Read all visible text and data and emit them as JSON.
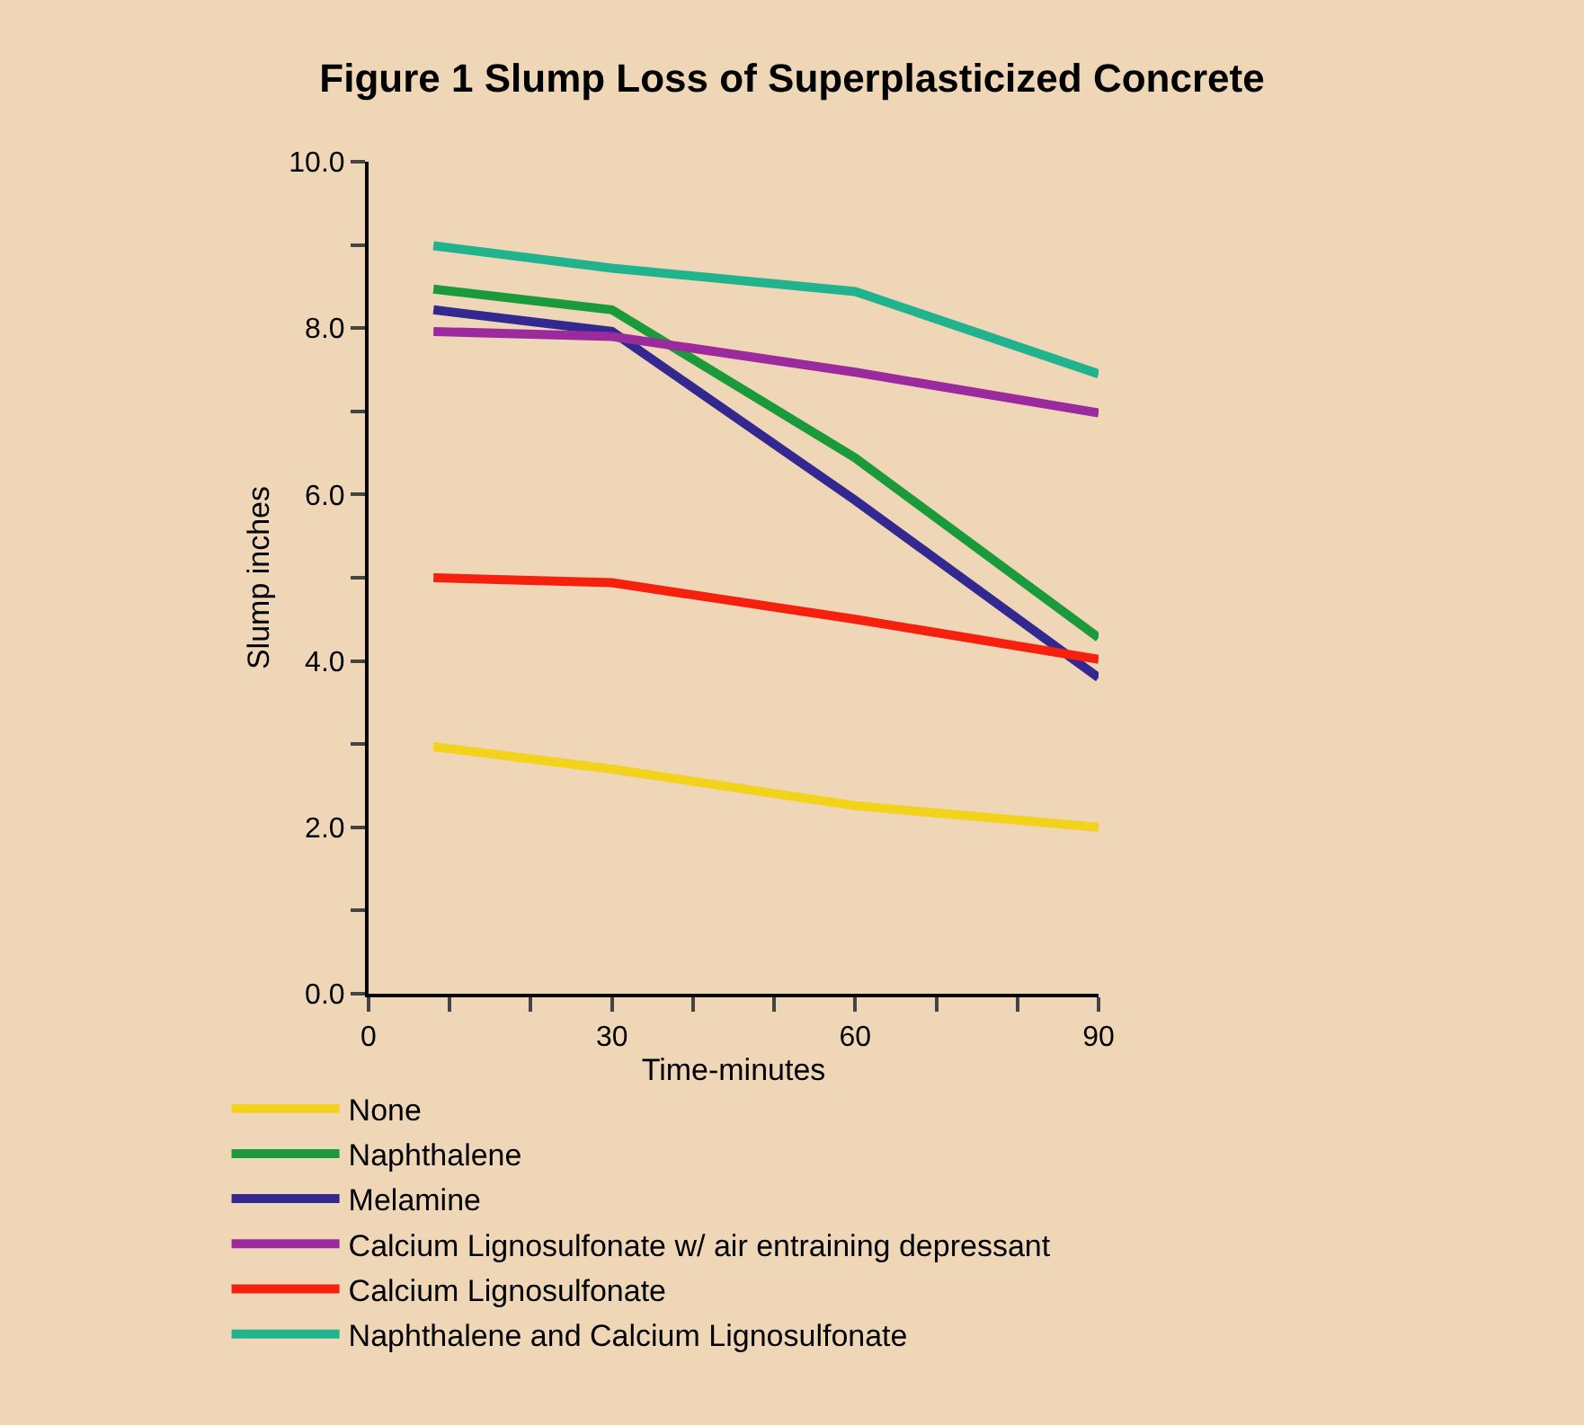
{
  "chart_data": {
    "type": "line",
    "title": "Figure 1 Slump Loss of Superplasticized Concrete",
    "xlabel": "Time-minutes",
    "ylabel": "Slump inches",
    "x": [
      8,
      30,
      60,
      90
    ],
    "series": [
      {
        "name": "None",
        "color": "#f2d21a",
        "values": [
          2.97,
          2.7,
          2.26,
          2.0
        ]
      },
      {
        "name": "Naphthalene",
        "color": "#1a9a3a",
        "values": [
          8.47,
          8.22,
          6.44,
          4.28
        ]
      },
      {
        "name": "Melamine",
        "color": "#33288f",
        "values": [
          8.22,
          7.96,
          5.93,
          3.8
        ]
      },
      {
        "name": "Calcium Lignosulfonate w/ air entraining depressant",
        "color": "#9a2a9e",
        "values": [
          7.96,
          7.9,
          7.47,
          6.98
        ]
      },
      {
        "name": "Calcium Lignosulfonate",
        "color": "#f5200e",
        "values": [
          5.0,
          4.94,
          4.5,
          4.02
        ]
      },
      {
        "name": "Naphthalene and Calcium Lignosulfonate",
        "color": "#20b38e",
        "values": [
          8.99,
          8.72,
          8.44,
          7.45
        ]
      }
    ],
    "xlim": [
      0,
      90
    ],
    "ylim": [
      0,
      10
    ],
    "xticks": [
      0,
      {
        "value": 10,
        "label": null
      },
      {
        "value": 20,
        "label": null
      },
      30,
      {
        "value": 40,
        "label": null
      },
      {
        "value": 50,
        "label": null
      },
      60,
      {
        "value": 70,
        "label": null
      },
      {
        "value": 80,
        "label": null
      },
      90
    ],
    "yticks": [
      {
        "value": 0,
        "label": "0.0"
      },
      {
        "value": 1,
        "label": null
      },
      {
        "value": 2,
        "label": "2.0"
      },
      {
        "value": 3,
        "label": null
      },
      {
        "value": 4,
        "label": "4.0"
      },
      {
        "value": 5,
        "label": null
      },
      {
        "value": 6,
        "label": "6.0"
      },
      {
        "value": 7,
        "label": null
      },
      {
        "value": 8,
        "label": "8.0"
      },
      {
        "value": 9,
        "label": null
      },
      {
        "value": 10,
        "label": "10.0"
      }
    ],
    "grid": false,
    "legend": "bottom left",
    "marker": "none",
    "line_style": "solid"
  }
}
